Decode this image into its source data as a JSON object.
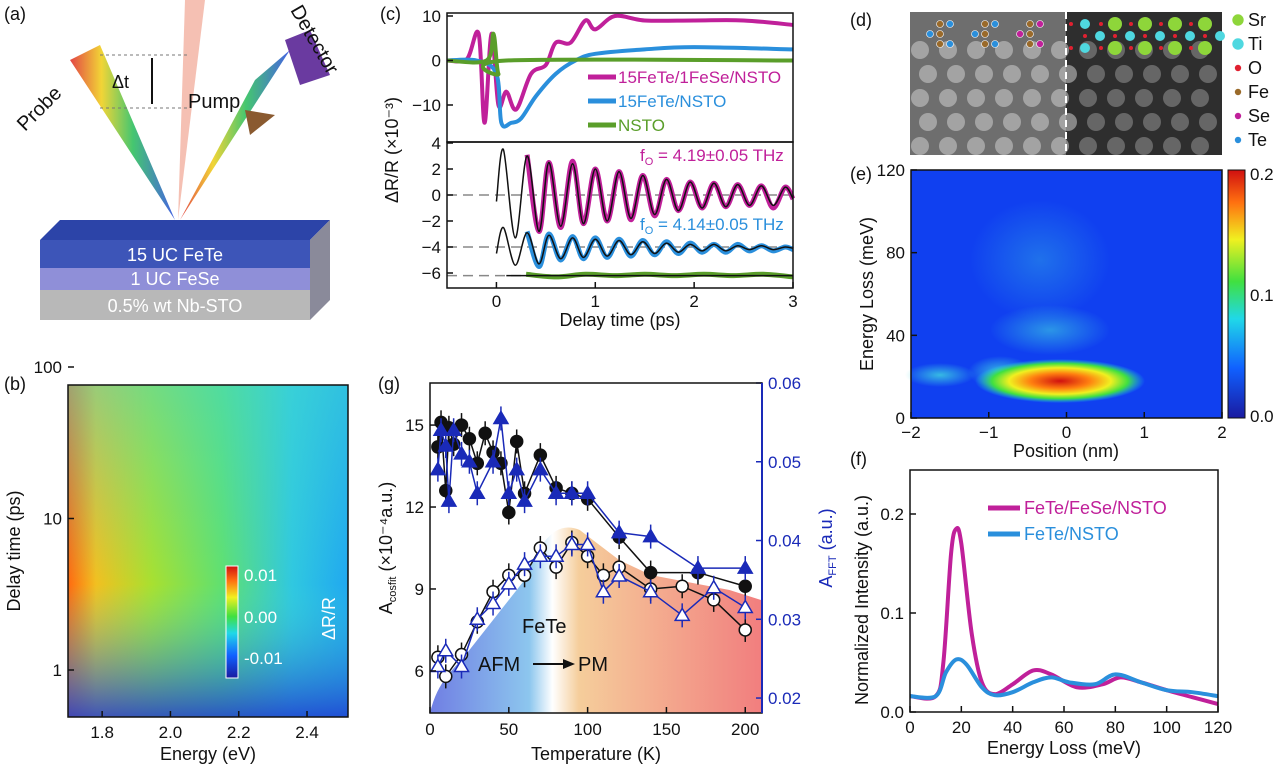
{
  "panel_labels": [
    "(a)",
    "(b)",
    "(c)",
    "(d)",
    "(e)",
    "(f)",
    "(g)"
  ],
  "schematic": {
    "labels": {
      "probe": "Probe",
      "pump": "Pump",
      "detector": "Detector",
      "delta_t": "Δt"
    },
    "layers": [
      "15 UC FeTe",
      "1 UC FeSe",
      "0.5% wt Nb-STO"
    ],
    "layer_colors": [
      "#3d55b8",
      "#8f8fd8",
      "#b8b8b8"
    ]
  },
  "chart_data": [
    {
      "panel": "b",
      "type": "heatmap",
      "xlabel": "Energy (eV)",
      "ylabel": "Delay time (ps)",
      "xlim": [
        1.7,
        2.52
      ],
      "xticks": [
        1.8,
        2.0,
        2.2,
        2.4
      ],
      "yscale": "log",
      "yticks": [
        1,
        10,
        100
      ],
      "colorbar": {
        "label": "ΔR/R",
        "ticks": [
          "0.01",
          "0.00",
          "-0.01"
        ],
        "range": [
          -0.01,
          0.01
        ]
      }
    },
    {
      "panel": "c",
      "type": "line",
      "xlabel": "Delay time (ps)",
      "ylabel": "ΔR/R (×10⁻³)",
      "xlim": [
        -0.5,
        3
      ],
      "xticks": [
        0,
        1,
        2,
        3
      ],
      "top": {
        "ylim": [
          -14.5,
          10.5
        ],
        "yticks": [
          10,
          0,
          -10
        ],
        "series": [
          {
            "name": "15FeTe/1FeSe/NSTO",
            "color": "#c0209a",
            "x": [
              -0.5,
              -0.3,
              -0.18,
              -0.12,
              -0.05,
              0.02,
              0.1,
              0.2,
              0.35,
              0.5,
              0.6,
              0.75,
              0.9,
              1.0,
              1.2,
              1.5,
              2.0,
              2.5,
              3.0
            ],
            "y": [
              0,
              0.3,
              6,
              -14,
              6,
              -10,
              -7,
              -11,
              -3,
              -1,
              4,
              4,
              9,
              7,
              10,
              9,
              9,
              9,
              8
            ]
          },
          {
            "name": "15FeTe/NSTO",
            "color": "#2a8fdc",
            "x": [
              -0.5,
              -0.2,
              0,
              0.05,
              0.15,
              0.25,
              0.4,
              0.6,
              0.8,
              1.0,
              1.5,
              2.0,
              3.0
            ],
            "y": [
              0,
              0,
              -3,
              -14,
              -14,
              -13,
              -8,
              -3,
              0,
              1.5,
              2.5,
              3,
              2.5
            ]
          },
          {
            "name": "NSTO",
            "color": "#5a9e2a",
            "x": [
              -0.5,
              -0.1,
              -0.03,
              0.02,
              0.1,
              3.0
            ],
            "y": [
              0,
              0,
              6,
              -3,
              0,
              0
            ]
          }
        ]
      },
      "bottom": {
        "ylim": [
          -6.5,
          4
        ],
        "yticks": [
          4,
          2,
          0,
          -2,
          -4,
          -6
        ],
        "offsets": [
          0,
          -4,
          -6.2
        ],
        "annotations": [
          {
            "text": "4.19±0.05 THz",
            "prefix": "f",
            "sub": "O",
            "color": "#c0209a"
          },
          {
            "text": "4.14±0.05 THz",
            "prefix": "f",
            "sub": "O",
            "color": "#2a8fdc"
          }
        ],
        "series": [
          {
            "color": "#c0209a",
            "x": [
              0.31,
              0.43,
              0.53,
              0.65,
              0.77,
              0.88,
              1.0,
              1.12,
              1.24,
              1.36,
              1.48,
              1.6,
              1.72,
              1.84,
              1.96,
              2.08,
              2.2,
              2.32,
              2.44,
              2.56,
              2.68,
              2.8,
              2.92,
              3.0
            ],
            "y": [
              3.1,
              -2.8,
              2.5,
              -2.5,
              2.6,
              -2.2,
              2.0,
              -2.0,
              1.8,
              -1.9,
              1.5,
              -1.6,
              1.2,
              -1.2,
              1.0,
              -1.0,
              0.9,
              -0.9,
              0.8,
              -0.8,
              0.7,
              -1.0,
              0.6,
              -0.3
            ]
          },
          {
            "color": "#2a8fdc",
            "x": [
              0.31,
              0.43,
              0.53,
              0.65,
              0.77,
              0.88,
              1.0,
              1.12,
              1.24,
              1.36,
              1.48,
              1.6,
              1.72,
              1.84,
              1.96,
              2.08,
              2.2,
              2.32,
              2.44,
              2.56,
              2.68,
              2.8,
              2.92,
              3.0
            ],
            "y": [
              -2.8,
              -5.5,
              -3.0,
              -5.0,
              -3.2,
              -4.9,
              -3.3,
              -4.8,
              -3.4,
              -4.7,
              -3.5,
              -4.6,
              -3.6,
              -4.5,
              -3.7,
              -4.4,
              -3.8,
              -4.4,
              -3.8,
              -4.3,
              -3.9,
              -4.3,
              -4.0,
              -4.2
            ]
          },
          {
            "color": "#5a9e2a",
            "x": [
              0.3,
              0.6,
              0.9,
              1.2,
              1.5,
              1.8,
              2.1,
              2.4,
              2.7,
              3.0
            ],
            "y": [
              -6.1,
              -6.3,
              -6.1,
              -6.2,
              -6.1,
              -6.2,
              -6.1,
              -6.2,
              -6.1,
              -6.3
            ]
          }
        ],
        "fits": [
          {
            "x": [
              0,
              0.07,
              0.19,
              0.31,
              0.43,
              0.53,
              0.65,
              0.77,
              0.88,
              1.0,
              1.12,
              1.24,
              1.36,
              1.48,
              1.6,
              1.72,
              1.84,
              1.96,
              2.08,
              2.2,
              2.32,
              2.44,
              2.56,
              2.68,
              2.8,
              2.92,
              3.0
            ],
            "y": [
              -0.5,
              3.5,
              -3.3,
              3.0,
              -2.8,
              2.5,
              -2.4,
              2.4,
              -2.2,
              2.0,
              -2.0,
              1.8,
              -1.8,
              1.5,
              -1.5,
              1.2,
              -1.2,
              1.0,
              -1.0,
              0.9,
              -0.9,
              0.8,
              -0.8,
              0.7,
              -0.8,
              0.6,
              -0.3
            ]
          },
          {
            "x": [
              0,
              0.07,
              0.19,
              0.31,
              0.43,
              0.53,
              0.65,
              0.77,
              0.88,
              1.0,
              1.12,
              1.24,
              1.36,
              1.48,
              1.6,
              1.72,
              1.84,
              1.96,
              2.08,
              2.2,
              2.32,
              2.44,
              2.56,
              2.68,
              2.8,
              2.92,
              3.0
            ],
            "y": [
              -4.5,
              -2.5,
              -5.4,
              -2.9,
              -5.3,
              -3.1,
              -4.9,
              -3.3,
              -4.8,
              -3.4,
              -4.7,
              -3.5,
              -4.6,
              -3.6,
              -4.5,
              -3.7,
              -4.4,
              -3.8,
              -4.3,
              -3.8,
              -4.3,
              -3.9,
              -4.2,
              -3.9,
              -4.2,
              -4.0,
              -4.1
            ]
          },
          {
            "x": [
              0.1,
              3.0
            ],
            "y": [
              -6.2,
              -6.2
            ]
          }
        ]
      }
    },
    {
      "panel": "d",
      "type": "image",
      "legend": [
        {
          "name": "Sr",
          "color": "#8ed63a"
        },
        {
          "name": "Ti",
          "color": "#4fd8e0"
        },
        {
          "name": "O",
          "color": "#e02030"
        },
        {
          "name": "Fe",
          "color": "#9a6a2a"
        },
        {
          "name": "Se",
          "color": "#c0209a"
        },
        {
          "name": "Te",
          "color": "#2a8fdc"
        }
      ]
    },
    {
      "panel": "e",
      "type": "heatmap",
      "xlabel": "Position (nm)",
      "ylabel": "Energy Loss (meV)",
      "xlim": [
        -2,
        2
      ],
      "xticks": [
        -2,
        -1,
        0,
        1,
        2
      ],
      "ylim": [
        0,
        120
      ],
      "yticks": [
        0,
        40,
        80,
        120
      ],
      "colorbar": {
        "ticks": [
          "0.2",
          "0.1",
          "0.0"
        ],
        "range": [
          0,
          0.2
        ]
      }
    },
    {
      "panel": "f",
      "type": "line",
      "xlabel": "Energy Loss (meV)",
      "ylabel": "Normalized Intensity (a.u.)",
      "xlim": [
        0,
        120
      ],
      "xticks": [
        0,
        20,
        40,
        60,
        80,
        100,
        120
      ],
      "ylim": [
        0,
        0.2
      ],
      "yticks": [
        "0.0",
        "0.1",
        "0.2"
      ],
      "legend_placement": "top-right",
      "series": [
        {
          "name": "FeTe/FeSe/NSTO",
          "color": "#c0209a",
          "x": [
            0,
            10,
            13,
            16,
            18,
            20,
            24,
            28,
            33,
            40,
            48,
            55,
            65,
            75,
            82,
            90,
            100,
            110,
            120
          ],
          "y": [
            0.016,
            0.016,
            0.05,
            0.16,
            0.185,
            0.17,
            0.08,
            0.03,
            0.018,
            0.028,
            0.042,
            0.038,
            0.025,
            0.028,
            0.035,
            0.03,
            0.022,
            0.015,
            0.008
          ]
        },
        {
          "name": "FeTe/NSTO",
          "color": "#2a8fdc",
          "x": [
            0,
            10,
            14,
            18,
            22,
            28,
            33,
            40,
            48,
            55,
            62,
            72,
            80,
            90,
            100,
            110,
            120
          ],
          "y": [
            0.016,
            0.016,
            0.04,
            0.053,
            0.048,
            0.025,
            0.017,
            0.02,
            0.03,
            0.035,
            0.03,
            0.028,
            0.038,
            0.03,
            0.022,
            0.02,
            0.016
          ]
        }
      ]
    },
    {
      "panel": "g",
      "type": "scatter",
      "xlabel": "Temperature (K)",
      "ylabel": "A",
      "ylabel_sub": "cosfit",
      "ylabel_unit": " (×10⁻⁴a.u.)",
      "y2label": "A",
      "y2label_sub": "FFT",
      "y2label_unit": " (a.u.)",
      "xlim": [
        0,
        210
      ],
      "xticks": [
        0,
        50,
        100,
        150,
        200
      ],
      "ylim": [
        4.46,
        16.54
      ],
      "yticks": [
        6,
        9,
        12,
        15
      ],
      "y2lim": [
        0.0181,
        0.06
      ],
      "y2ticks": [
        "0.02",
        "0.03",
        "0.04",
        "0.05",
        "0.06"
      ],
      "annotations": {
        "material": "FeTe",
        "from": "AFM",
        "to": "PM"
      },
      "series": [
        {
          "marker": "filled-circle",
          "axis": "left",
          "color": "#111111",
          "x": [
            5,
            7,
            10,
            12,
            15,
            20,
            25,
            30,
            35,
            40,
            45,
            50,
            55,
            60,
            70,
            80,
            90,
            100,
            120,
            140,
            170,
            200
          ],
          "y": [
            14.2,
            15.1,
            12.6,
            14.9,
            14.3,
            15.0,
            14.5,
            13.6,
            14.7,
            14.0,
            13.6,
            11.8,
            14.4,
            12.5,
            13.9,
            12.7,
            12.5,
            12.3,
            10.9,
            9.6,
            9.6,
            9.1
          ]
        },
        {
          "marker": "filled-triangle",
          "axis": "right",
          "color": "#1a2ab8",
          "x": [
            5,
            7,
            10,
            12,
            15,
            20,
            25,
            30,
            40,
            45,
            50,
            55,
            60,
            70,
            80,
            90,
            100,
            120,
            140,
            170,
            200
          ],
          "y": [
            0.049,
            0.054,
            0.052,
            0.045,
            0.054,
            0.051,
            0.05,
            0.046,
            0.05,
            0.0555,
            0.046,
            0.049,
            0.045,
            0.049,
            0.046,
            0.046,
            0.046,
            0.041,
            0.0405,
            0.0365,
            0.0365
          ]
        },
        {
          "marker": "open-circle",
          "axis": "left",
          "color": "#111111",
          "x": [
            5,
            10,
            20,
            30,
            40,
            50,
            60,
            70,
            80,
            90,
            100,
            110,
            120,
            140,
            160,
            180,
            200
          ],
          "y": [
            6.5,
            5.8,
            6.6,
            7.8,
            8.9,
            9.5,
            9.5,
            10.5,
            9.8,
            10.7,
            10.2,
            9.5,
            9.8,
            9.0,
            9.1,
            8.6,
            7.5
          ]
        },
        {
          "marker": "open-triangle",
          "axis": "right",
          "color": "#1a2ab8",
          "x": [
            5,
            10,
            20,
            30,
            40,
            50,
            60,
            70,
            80,
            90,
            100,
            110,
            120,
            140,
            160,
            180,
            200
          ],
          "y": [
            0.024,
            0.026,
            0.024,
            0.03,
            0.032,
            0.0345,
            0.037,
            0.038,
            0.038,
            0.0395,
            0.0395,
            0.0335,
            0.0355,
            0.0335,
            0.0305,
            0.034,
            0.0315
          ]
        }
      ]
    }
  ]
}
